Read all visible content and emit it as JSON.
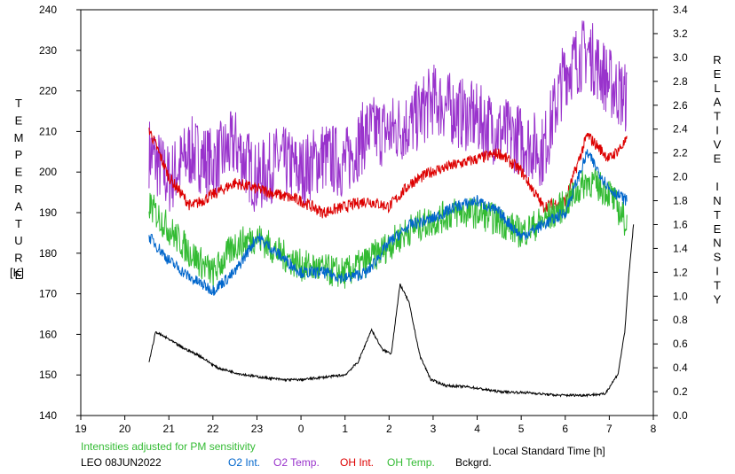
{
  "chart_data": {
    "type": "line",
    "left_axis_label": "TEMPERATURE",
    "left_axis_unit": "[K]",
    "right_axis_label": "RELATIVE INTENSITY",
    "xlabel": "Local Standard Time [h]",
    "note": "Intensities adjusted for PM sensitivity",
    "station": "LEO 08JUN2022",
    "x_ticks": [
      "19",
      "20",
      "21",
      "22",
      "23",
      "0",
      "1",
      "2",
      "3",
      "4",
      "5",
      "6",
      "7",
      "8"
    ],
    "y_left_ticks": [
      "140",
      "150",
      "160",
      "170",
      "180",
      "190",
      "200",
      "210",
      "220",
      "230",
      "240"
    ],
    "y_right_ticks": [
      "0.0",
      "0.2",
      "0.4",
      "0.6",
      "0.8",
      "1.0",
      "1.2",
      "1.4",
      "1.6",
      "1.8",
      "2.0",
      "2.2",
      "2.4",
      "2.6",
      "2.8",
      "3.0",
      "3.2",
      "3.4"
    ],
    "xlim": [
      19,
      32
    ],
    "ylim_left": [
      140,
      240
    ],
    "ylim_right": [
      0,
      3.4
    ],
    "legend": [
      {
        "label": "O2 Int.",
        "color": "#0066cc"
      },
      {
        "label": "O2 Temp.",
        "color": "#9933cc"
      },
      {
        "label": "OH Int.",
        "color": "#dd0000"
      },
      {
        "label": "OH Temp.",
        "color": "#33bb33"
      },
      {
        "label": "Bckgrd.",
        "color": "#000000"
      }
    ],
    "note_color": "#33bb33",
    "series": [
      {
        "name": "O2 Temp.",
        "axis": "left",
        "color": "#9933cc",
        "noise": 9,
        "x": [
          20.55,
          21,
          21.5,
          22,
          22.5,
          23,
          23.5,
          24,
          24.5,
          25,
          25.5,
          26,
          26.5,
          27,
          27.5,
          28,
          28.5,
          29,
          29.5,
          30,
          30.5,
          31,
          31.4
        ],
        "y": [
          205,
          198,
          205,
          202,
          207,
          198,
          203,
          200,
          204,
          202,
          210,
          210,
          212,
          218,
          215,
          213,
          210,
          208,
          205,
          225,
          230,
          222,
          218
        ]
      },
      {
        "name": "OH Int.",
        "axis": "right",
        "color": "#dd0000",
        "noise": 0.05,
        "x": [
          20.55,
          21,
          21.5,
          22,
          22.5,
          23,
          23.5,
          24,
          24.5,
          25,
          25.5,
          26,
          26.5,
          27,
          27.5,
          28,
          28.5,
          29,
          29.5,
          30,
          30.5,
          31,
          31.4
        ],
        "y": [
          2.4,
          2.0,
          1.75,
          1.85,
          1.95,
          1.9,
          1.85,
          1.8,
          1.7,
          1.75,
          1.8,
          1.75,
          1.95,
          2.05,
          2.1,
          2.15,
          2.2,
          2.05,
          1.75,
          1.8,
          2.35,
          2.15,
          2.3
        ]
      },
      {
        "name": "OH Temp.",
        "axis": "left",
        "color": "#33bb33",
        "noise": 4,
        "x": [
          20.55,
          21,
          21.5,
          22,
          22.5,
          23,
          23.5,
          24,
          24.5,
          25,
          25.5,
          26,
          26.5,
          27,
          27.5,
          28,
          28.5,
          29,
          29.5,
          30,
          30.5,
          31,
          31.4
        ],
        "y": [
          192,
          186,
          180,
          175,
          182,
          184,
          180,
          177,
          176,
          175,
          178,
          182,
          186,
          188,
          190,
          190,
          188,
          185,
          188,
          192,
          198,
          195,
          187
        ]
      },
      {
        "name": "O2 Int.",
        "axis": "right",
        "color": "#0066cc",
        "noise": 0.05,
        "x": [
          20.55,
          21,
          21.5,
          22,
          22.5,
          23,
          23.5,
          24,
          24.5,
          25,
          25.5,
          26,
          26.5,
          27,
          27.5,
          28,
          28.5,
          29,
          29.5,
          30,
          30.5,
          31,
          31.4
        ],
        "y": [
          1.5,
          1.3,
          1.15,
          1.05,
          1.2,
          1.5,
          1.35,
          1.2,
          1.2,
          1.15,
          1.2,
          1.45,
          1.6,
          1.65,
          1.75,
          1.8,
          1.7,
          1.5,
          1.6,
          1.7,
          2.2,
          1.9,
          1.8
        ]
      },
      {
        "name": "Bckgrd.",
        "axis": "right",
        "color": "#000000",
        "noise": 0.01,
        "x": [
          20.55,
          20.7,
          20.95,
          21.3,
          21.7,
          22.1,
          22.6,
          23.1,
          23.6,
          24.0,
          24.5,
          25.0,
          25.3,
          25.6,
          25.85,
          26.05,
          26.25,
          26.45,
          26.7,
          26.95,
          27.3,
          27.8,
          28.5,
          29.2,
          29.8,
          30.4,
          30.9,
          31.2,
          31.35,
          31.45,
          31.55
        ],
        "y": [
          0.45,
          0.7,
          0.65,
          0.57,
          0.5,
          0.4,
          0.35,
          0.32,
          0.3,
          0.3,
          0.32,
          0.34,
          0.45,
          0.72,
          0.55,
          0.52,
          1.1,
          0.95,
          0.5,
          0.3,
          0.25,
          0.24,
          0.2,
          0.19,
          0.17,
          0.17,
          0.18,
          0.35,
          0.7,
          1.2,
          1.6
        ]
      }
    ]
  }
}
